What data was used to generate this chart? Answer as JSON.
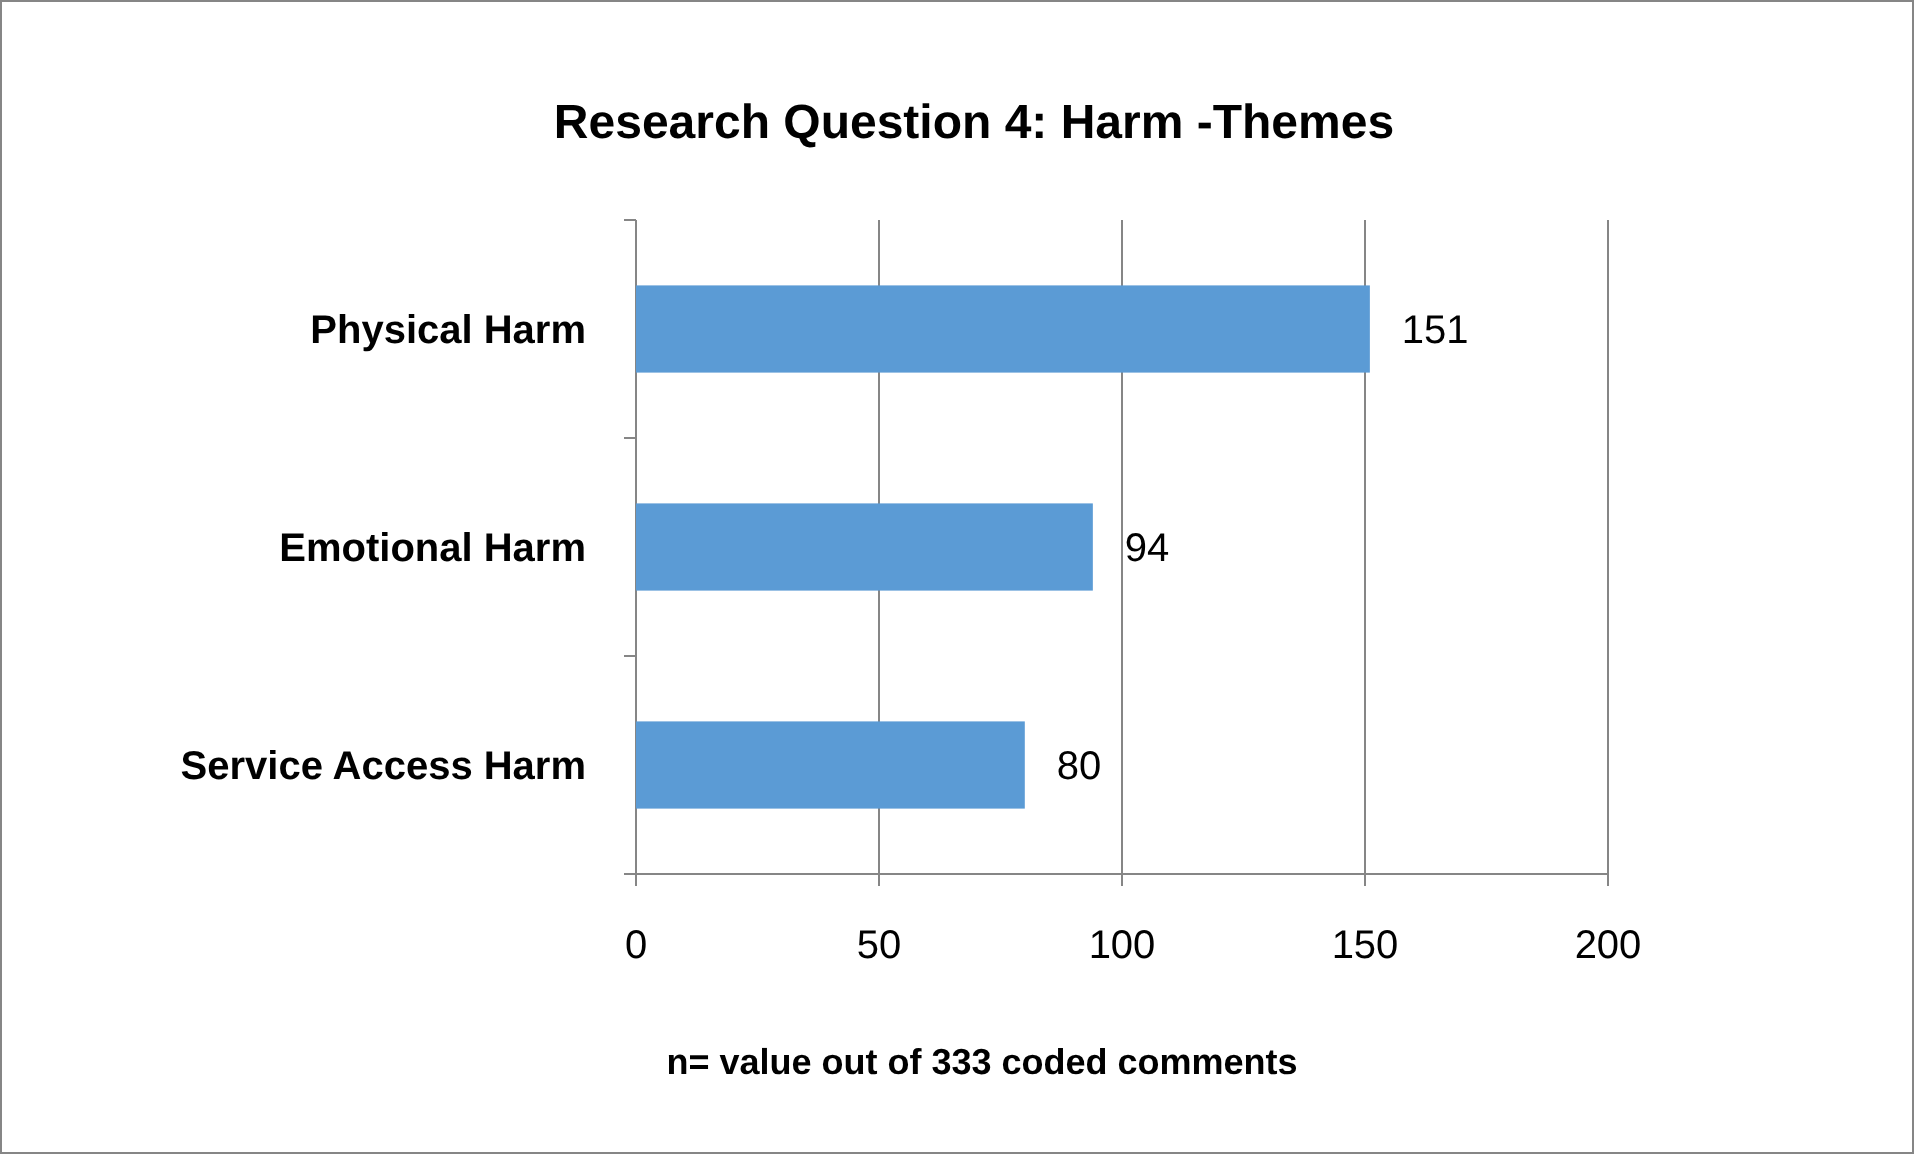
{
  "chart_data": {
    "type": "bar",
    "orientation": "horizontal",
    "title": "Research Question 4: Harm -Themes",
    "xlabel": "n= value out of 333 coded comments",
    "categories": [
      "Physical Harm",
      "Emotional Harm",
      "Service Access Harm"
    ],
    "values": [
      151,
      94,
      80
    ],
    "color": "#5b9bd5",
    "xlim": [
      0,
      200
    ],
    "xticks": [
      0,
      50,
      100,
      150,
      200
    ],
    "grid": "x",
    "data_labels": true
  }
}
